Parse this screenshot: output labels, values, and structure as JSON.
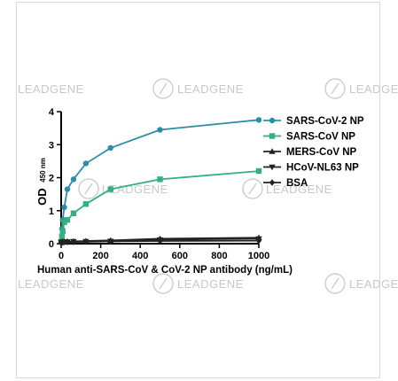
{
  "watermark": "LEADGENE",
  "chart_data": {
    "type": "line",
    "ylabel": "OD",
    "ylabel_sub": "450 nm",
    "xlabel": "Human anti-SARS-CoV & CoV-2 NP antibody (ng/mL)",
    "xlim": [
      0,
      1000
    ],
    "ylim": [
      0,
      4
    ],
    "xticks": [
      "0",
      "200",
      "400",
      "600",
      "800",
      "1000"
    ],
    "yticks": [
      "0",
      "1",
      "2",
      "3",
      "4"
    ],
    "grid": false,
    "legend": "right",
    "x": [
      0,
      3.9,
      7.8,
      15.6,
      31.25,
      62.5,
      125,
      250,
      500,
      1000
    ],
    "series": [
      {
        "name": "SARS-CoV-2 NP",
        "color": "#2a8fa6",
        "marker": "circle",
        "values": [
          0.05,
          0.45,
          0.72,
          1.1,
          1.65,
          1.95,
          2.43,
          2.9,
          3.45,
          3.75
        ]
      },
      {
        "name": "SARS-CoV NP",
        "color": "#33b07f",
        "marker": "square",
        "values": [
          0.05,
          0.22,
          0.38,
          0.65,
          0.72,
          0.92,
          1.2,
          1.65,
          1.95,
          2.2
        ]
      },
      {
        "name": "MERS-CoV NP",
        "color": "#222222",
        "marker": "triangle-up",
        "values": [
          0.05,
          0.05,
          0.06,
          0.06,
          0.07,
          0.07,
          0.08,
          0.1,
          0.15,
          0.18
        ]
      },
      {
        "name": "HCoV-NL63 NP",
        "color": "#222222",
        "marker": "triangle-down",
        "values": [
          0.05,
          0.05,
          0.05,
          0.06,
          0.06,
          0.07,
          0.07,
          0.08,
          0.12,
          0.15
        ]
      },
      {
        "name": "BSA",
        "color": "#222222",
        "marker": "diamond",
        "values": [
          0.04,
          0.04,
          0.04,
          0.05,
          0.05,
          0.05,
          0.06,
          0.07,
          0.08,
          0.09
        ]
      }
    ]
  }
}
